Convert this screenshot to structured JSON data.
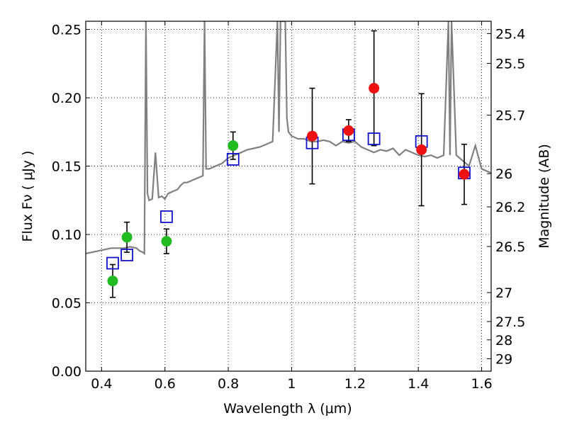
{
  "chart_data": {
    "type": "scatter",
    "xlabel": "Wavelength  λ (μm)",
    "ylabel": "Flux  Fν ( μJy )",
    "ylabel_right": "Magnitude (AB)",
    "xlim": [
      0.35,
      1.63
    ],
    "ylim": [
      0.0,
      0.256
    ],
    "grid": true,
    "x_ticks": [
      {
        "value": 0.4,
        "label": "0.4"
      },
      {
        "value": 0.6,
        "label": "0.6"
      },
      {
        "value": 0.8,
        "label": "0.8"
      },
      {
        "value": 1.0,
        "label": "1"
      },
      {
        "value": 1.2,
        "label": "1.2"
      },
      {
        "value": 1.4,
        "label": "1.4"
      },
      {
        "value": 1.6,
        "label": "1.6"
      }
    ],
    "y_ticks": [
      {
        "value": 0.0,
        "label": "0.00"
      },
      {
        "value": 0.05,
        "label": "0.05"
      },
      {
        "value": 0.1,
        "label": "0.10"
      },
      {
        "value": 0.15,
        "label": "0.15"
      },
      {
        "value": 0.2,
        "label": "0.20"
      },
      {
        "value": 0.25,
        "label": "0.25"
      }
    ],
    "mag_ticks": [
      {
        "flux": 0.247,
        "label": "25.4"
      },
      {
        "flux": 0.2252,
        "label": "25.5"
      },
      {
        "flux": 0.1873,
        "label": "25.7"
      },
      {
        "flux": 0.1445,
        "label": "26"
      },
      {
        "flux": 0.1202,
        "label": "26.2"
      },
      {
        "flux": 0.0912,
        "label": "26.5"
      },
      {
        "flux": 0.0575,
        "label": "27"
      },
      {
        "flux": 0.0363,
        "label": "27.5"
      },
      {
        "flux": 0.0229,
        "label": "28"
      },
      {
        "flux": 0.0091,
        "label": "29"
      }
    ],
    "series": [
      {
        "name": "model_sed",
        "type": "line",
        "color": "#808080",
        "x": [
          0.35,
          0.37,
          0.39,
          0.41,
          0.43,
          0.45,
          0.47,
          0.49,
          0.51,
          0.52,
          0.53,
          0.535,
          0.54,
          0.545,
          0.55,
          0.56,
          0.57,
          0.58,
          0.59,
          0.6,
          0.61,
          0.62,
          0.63,
          0.64,
          0.65,
          0.66,
          0.67,
          0.68,
          0.69,
          0.7,
          0.71,
          0.72,
          0.725,
          0.73,
          0.74,
          0.76,
          0.78,
          0.8,
          0.82,
          0.84,
          0.86,
          0.88,
          0.9,
          0.92,
          0.94,
          0.955,
          0.96,
          0.965,
          0.98,
          0.985,
          0.99,
          1.0,
          1.01,
          1.02,
          1.04,
          1.06,
          1.08,
          1.1,
          1.12,
          1.14,
          1.16,
          1.18,
          1.2,
          1.22,
          1.24,
          1.26,
          1.28,
          1.3,
          1.32,
          1.34,
          1.36,
          1.38,
          1.4,
          1.42,
          1.44,
          1.46,
          1.48,
          1.495,
          1.5,
          1.505,
          1.52,
          1.54,
          1.56,
          1.58,
          1.6,
          1.63
        ],
        "y": [
          0.086,
          0.087,
          0.088,
          0.089,
          0.09,
          0.09,
          0.09,
          0.091,
          0.09,
          0.088,
          0.087,
          0.086,
          0.256,
          0.13,
          0.125,
          0.126,
          0.16,
          0.127,
          0.128,
          0.126,
          0.13,
          0.131,
          0.132,
          0.133,
          0.136,
          0.138,
          0.138,
          0.139,
          0.14,
          0.141,
          0.142,
          0.143,
          0.256,
          0.148,
          0.148,
          0.15,
          0.152,
          0.156,
          0.158,
          0.16,
          0.162,
          0.163,
          0.164,
          0.166,
          0.168,
          0.256,
          0.175,
          0.256,
          0.256,
          0.185,
          0.175,
          0.172,
          0.171,
          0.17,
          0.17,
          0.168,
          0.168,
          0.169,
          0.168,
          0.165,
          0.168,
          0.167,
          0.168,
          0.164,
          0.162,
          0.16,
          0.162,
          0.161,
          0.163,
          0.158,
          0.162,
          0.16,
          0.158,
          0.157,
          0.158,
          0.156,
          0.158,
          0.256,
          0.158,
          0.256,
          0.158,
          0.154,
          0.15,
          0.165,
          0.148,
          0.145
        ]
      },
      {
        "name": "green_points",
        "type": "scatter",
        "color": "#22bb22",
        "x": [
          0.435,
          0.48,
          0.605,
          0.815
        ],
        "y": [
          0.066,
          0.098,
          0.095,
          0.165
        ],
        "yerr": [
          0.012,
          0.011,
          0.009,
          0.01
        ]
      },
      {
        "name": "red_points",
        "type": "scatter",
        "color": "#ee1111",
        "x": [
          1.065,
          1.18,
          1.26,
          1.41,
          1.545
        ],
        "y": [
          0.172,
          0.176,
          0.207,
          0.162,
          0.144
        ],
        "yerr": [
          0.035,
          0.008,
          0.042,
          0.041,
          0.022
        ]
      },
      {
        "name": "blue_squares",
        "type": "scatter",
        "color": "#1111cc",
        "x": [
          0.435,
          0.48,
          0.605,
          0.815,
          1.065,
          1.18,
          1.26,
          1.41,
          1.545
        ],
        "y": [
          0.079,
          0.085,
          0.113,
          0.155,
          0.167,
          0.173,
          0.17,
          0.168,
          0.145
        ]
      }
    ]
  }
}
